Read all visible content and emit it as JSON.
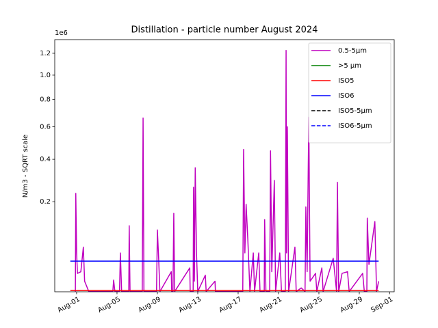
{
  "chart_data": {
    "type": "line",
    "title": "Distillation - particle number August 2024",
    "ylabel": "N/m3 - SQRT scale",
    "yoffset_label": "1e6",
    "yscale": "sqrt",
    "ylim": [
      0.0029,
      1.334
    ],
    "yticks": [
      0.2,
      0.4,
      0.6,
      0.8,
      {
        "value": 1,
        "label": "1.0"
      },
      1.2
    ],
    "xlim": [
      "2024-07-29T20:00",
      "2024-09-01T11:00"
    ],
    "xticks": [
      {
        "value": "2024-08-01",
        "label": "Aug-01"
      },
      {
        "value": "2024-08-05",
        "label": "Aug-05"
      },
      {
        "value": "2024-08-09",
        "label": "Aug-09"
      },
      {
        "value": "2024-08-13",
        "label": "Aug-13"
      },
      {
        "value": "2024-08-17",
        "label": "Aug-17"
      },
      {
        "value": "2024-08-21",
        "label": "Aug-21"
      },
      {
        "value": "2024-08-25",
        "label": "Aug-25"
      },
      {
        "value": "2024-08-29",
        "label": "Aug-29"
      },
      {
        "value": "2024-09-01",
        "label": "Sep-01"
      }
    ],
    "legend": "upper right",
    "series": [
      {
        "name": "0.5-5µm",
        "color": "#bf00bf",
        "x": [
          "2024-07-31T21:00",
          "2024-07-31T22:00",
          "2024-08-01T00:00",
          "2024-08-01T02:00",
          "2024-08-01T10:00",
          "2024-08-01T16:00",
          "2024-08-01T19:00",
          "2024-08-02T05:00",
          "2024-08-04T14:00",
          "2024-08-04T16:00",
          "2024-08-04T19:00",
          "2024-08-05T06:00",
          "2024-08-05T08:00",
          "2024-08-05T11:00",
          "2024-08-06T04:00",
          "2024-08-06T05:00",
          "2024-08-06T07:00",
          "2024-08-07T12:00",
          "2024-08-07T14:00",
          "2024-08-07T16:00",
          "2024-08-08T22:00",
          "2024-08-09T00:00",
          "2024-08-09T03:00",
          "2024-08-09T06:00",
          "2024-08-10T09:00",
          "2024-08-10T10:00",
          "2024-08-10T13:00",
          "2024-08-10T15:00",
          "2024-08-10T17:00",
          "2024-08-12T05:00",
          "2024-08-12T06:00",
          "2024-08-12T13:00",
          "2024-08-12T14:00",
          "2024-08-12T16:00",
          "2024-08-12T18:00",
          "2024-08-12T21:00",
          "2024-08-13T00:00",
          "2024-08-13T18:00",
          "2024-08-13T20:00",
          "2024-08-14T17:00",
          "2024-08-14T18:00",
          "2024-08-17T11:00",
          "2024-08-17T13:00",
          "2024-08-17T16:00",
          "2024-08-17T19:00",
          "2024-08-17T23:00",
          "2024-08-18T04:00",
          "2024-08-18T12:00",
          "2024-08-18T15:00",
          "2024-08-19T01:00",
          "2024-08-19T04:00",
          "2024-08-19T14:00",
          "2024-08-19T15:00",
          "2024-08-19T18:00",
          "2024-08-20T03:00",
          "2024-08-20T05:00",
          "2024-08-20T08:00",
          "2024-08-20T14:00",
          "2024-08-20T17:00",
          "2024-08-21T03:00",
          "2024-08-21T07:00",
          "2024-08-21T16:00",
          "2024-08-21T18:00",
          "2024-08-21T19:00",
          "2024-08-21T21:00",
          "2024-08-22T00:00",
          "2024-08-22T15:00",
          "2024-08-22T18:00",
          "2024-08-23T06:00",
          "2024-08-23T15:00",
          "2024-08-23T17:00",
          "2024-08-23T20:00",
          "2024-08-24T00:00",
          "2024-08-24T03:00",
          "2024-08-24T16:00",
          "2024-08-24T19:00",
          "2024-08-25T07:00",
          "2024-08-25T10:00",
          "2024-08-26T10:00",
          "2024-08-26T18:00",
          "2024-08-26T20:00",
          "2024-08-26T23:00",
          "2024-08-27T07:00",
          "2024-08-27T20:00",
          "2024-08-28T00:00",
          "2024-08-29T08:00",
          "2024-08-29T12:00",
          "2024-08-29T18:00",
          "2024-08-29T19:00",
          "2024-08-29T23:00",
          "2024-08-30T13:00",
          "2024-08-30T17:00",
          "2024-08-30T22:00"
        ],
        "values": [
          0.003,
          0.234,
          0.05,
          0.018,
          0.02,
          0.062,
          0.01,
          0.003,
          0.003,
          0.011,
          0.003,
          0.003,
          0.05,
          0.003,
          0.003,
          0.117,
          0.003,
          0.003,
          0.66,
          0.003,
          0.003,
          0.105,
          0.04,
          0.003,
          0.02,
          0.003,
          0.003,
          0.157,
          0.003,
          0.025,
          0.003,
          0.003,
          0.26,
          0.01,
          0.354,
          0.05,
          0.003,
          0.016,
          0.003,
          0.01,
          0.003,
          0.003,
          0.456,
          0.05,
          0.19,
          0.08,
          0.003,
          0.05,
          0.003,
          0.05,
          0.003,
          0.003,
          0.136,
          0.003,
          0.003,
          0.448,
          0.02,
          0.292,
          0.003,
          0.05,
          0.003,
          0.003,
          1.228,
          0.05,
          0.6,
          0.003,
          0.062,
          0.003,
          0.005,
          0.003,
          0.18,
          0.02,
          0.667,
          0.01,
          0.018,
          0.003,
          0.025,
          0.003,
          0.04,
          0.003,
          0.283,
          0.003,
          0.018,
          0.02,
          0.003,
          0.018,
          0.003,
          0.003,
          0.141,
          0.03,
          0.13,
          0.003,
          0.01
        ]
      },
      {
        "name": ">5 µm",
        "color": "#008000"
      },
      {
        "name": "ISO5",
        "color": "#ff0000",
        "x": [
          "2024-07-31T09:00",
          "2024-08-30T22:00"
        ],
        "values": [
          0.00352,
          0.00352
        ]
      },
      {
        "name": "ISO6",
        "color": "#0000ff",
        "x": [
          "2024-07-31T09:00",
          "2024-08-30T22:00"
        ],
        "values": [
          0.0352,
          0.0352
        ]
      },
      {
        "name": "ISO5-5µm",
        "color": "#000000",
        "dashed": true
      },
      {
        "name": "ISO6-5µm",
        "color": "#0000ff",
        "dashed": true
      }
    ]
  }
}
